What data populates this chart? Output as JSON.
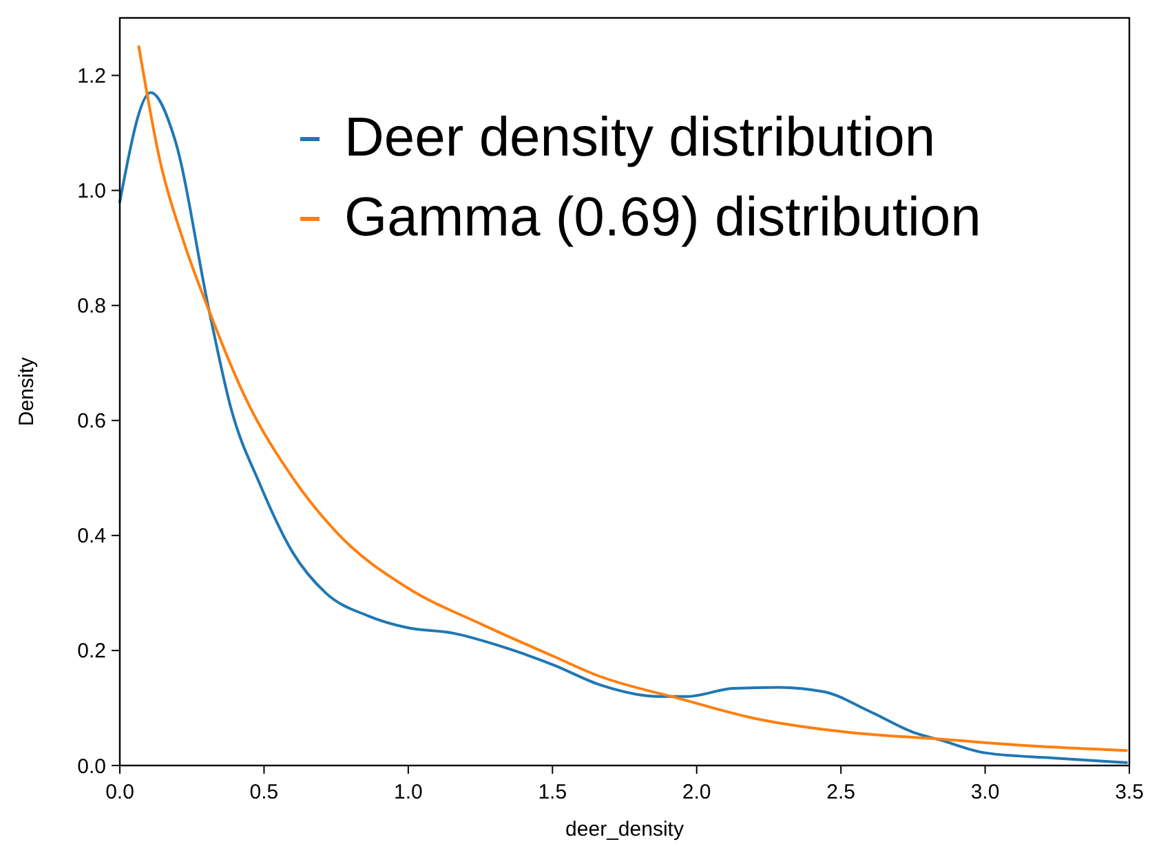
{
  "chart_data": {
    "type": "line",
    "xlabel": "deer_density",
    "ylabel": "Density",
    "xlim": [
      0,
      3.5
    ],
    "ylim": [
      0,
      1.3
    ],
    "xticks": [
      {
        "value": 0,
        "label": "0.0"
      },
      {
        "value": 0.5,
        "label": "0.5"
      },
      {
        "value": 1,
        "label": "1.0"
      },
      {
        "value": 1.5,
        "label": "1.5"
      },
      {
        "value": 2,
        "label": "2.0"
      },
      {
        "value": 2.5,
        "label": "2.5"
      },
      {
        "value": 3,
        "label": "3.0"
      },
      {
        "value": 3.5,
        "label": "3.5"
      }
    ],
    "yticks": [
      {
        "value": 0,
        "label": "0.0"
      },
      {
        "value": 0.2,
        "label": "0.2"
      },
      {
        "value": 0.4,
        "label": "0.4"
      },
      {
        "value": 0.6,
        "label": "0.6"
      },
      {
        "value": 0.8,
        "label": "0.8"
      },
      {
        "value": 1,
        "label": "1.0"
      },
      {
        "value": 1.2,
        "label": "1.2"
      }
    ],
    "grid": false,
    "legend": "top right",
    "marker": "none",
    "line_style": "solid",
    "series": [
      {
        "name": "Deer density distribution",
        "color": "#1f77b4",
        "x": [
          0,
          0.107,
          0.19,
          0.31,
          0.386,
          0.485,
          0.6,
          0.714,
          0.862,
          0.994,
          1.157,
          1.305,
          1.503,
          1.667,
          1.871,
          1.967,
          2.125,
          2.285,
          2.443,
          2.6,
          2.76,
          2.84,
          3.0,
          3.24,
          3.49
        ],
        "values": [
          0.98,
          1.17,
          1.09,
          0.79,
          0.62,
          0.49,
          0.37,
          0.3,
          0.26,
          0.24,
          0.23,
          0.21,
          0.175,
          0.14,
          0.12,
          0.12,
          0.134,
          0.136,
          0.128,
          0.094,
          0.056,
          0.045,
          0.022,
          0.013,
          0.005
        ]
      },
      {
        "name": "Gamma (0.69) distribution",
        "color": "#ff7f0e",
        "x": [
          0.066,
          0.14,
          0.222,
          0.31,
          0.435,
          0.6,
          0.762,
          0.994,
          1.257,
          1.503,
          1.648,
          1.95,
          2.2,
          2.52,
          2.84,
          3.16,
          3.49
        ],
        "values": [
          1.25,
          1.05,
          0.91,
          0.79,
          0.64,
          0.5,
          0.4,
          0.31,
          0.245,
          0.19,
          0.158,
          0.115,
          0.082,
          0.058,
          0.046,
          0.034,
          0.026
        ]
      }
    ]
  }
}
